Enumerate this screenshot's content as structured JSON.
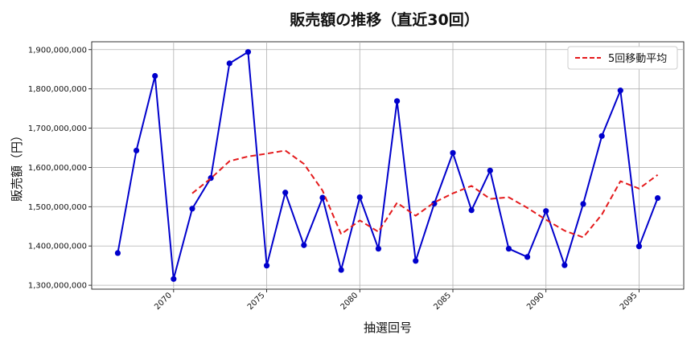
{
  "chart_data": {
    "type": "line",
    "title": "販売額の推移（直近30回）",
    "xlabel": "抽選回号",
    "ylabel": "販売額（円）",
    "xlim": [
      2065.6,
      2097.4
    ],
    "ylim": [
      1290000000,
      1920000000
    ],
    "xticks": [
      2070,
      2075,
      2080,
      2085,
      2090,
      2095
    ],
    "yticks": [
      1300000000,
      1400000000,
      1500000000,
      1600000000,
      1700000000,
      1800000000,
      1900000000
    ],
    "ytick_labels": [
      "1,300,000,000",
      "1,400,000,000",
      "1,500,000,000",
      "1,600,000,000",
      "1,700,000,000",
      "1,800,000,000",
      "1,900,000,000"
    ],
    "grid": true,
    "legend_position": "top-right",
    "series": [
      {
        "kind": "line-marker",
        "color": "#0000cc",
        "x": [
          2067,
          2068,
          2069,
          2070,
          2071,
          2072,
          2073,
          2074,
          2075,
          2076,
          2077,
          2078,
          2079,
          2080,
          2081,
          2082,
          2083,
          2084,
          2085,
          2086,
          2087,
          2088,
          2089,
          2090,
          2091,
          2092,
          2093,
          2094,
          2095,
          2096
        ],
        "values": [
          1382000000,
          1643000000,
          1833000000,
          1316000000,
          1495000000,
          1573000000,
          1865000000,
          1894000000,
          1350000000,
          1536000000,
          1402000000,
          1523000000,
          1339000000,
          1524000000,
          1393000000,
          1769000000,
          1362000000,
          1508000000,
          1637000000,
          1491000000,
          1592000000,
          1393000000,
          1372000000,
          1489000000,
          1351000000,
          1507000000,
          1680000000,
          1796000000,
          1399000000,
          1522000000
        ]
      },
      {
        "name": "5回移動平均",
        "kind": "dashed",
        "color": "#e41a1c",
        "x": [
          2071,
          2072,
          2073,
          2074,
          2075,
          2076,
          2077,
          2078,
          2079,
          2080,
          2081,
          2082,
          2083,
          2084,
          2085,
          2086,
          2087,
          2088,
          2089,
          2090,
          2091,
          2092,
          2093,
          2094,
          2095,
          2096
        ],
        "values": [
          1534000000,
          1572000000,
          1616000000,
          1628000000,
          1635000000,
          1643000000,
          1609000000,
          1541000000,
          1430000000,
          1465000000,
          1436000000,
          1510000000,
          1477000000,
          1511000000,
          1534000000,
          1553000000,
          1520000000,
          1524000000,
          1497000000,
          1467000000,
          1439000000,
          1422000000,
          1480000000,
          1565000000,
          1546000000,
          1581000000
        ]
      }
    ]
  }
}
